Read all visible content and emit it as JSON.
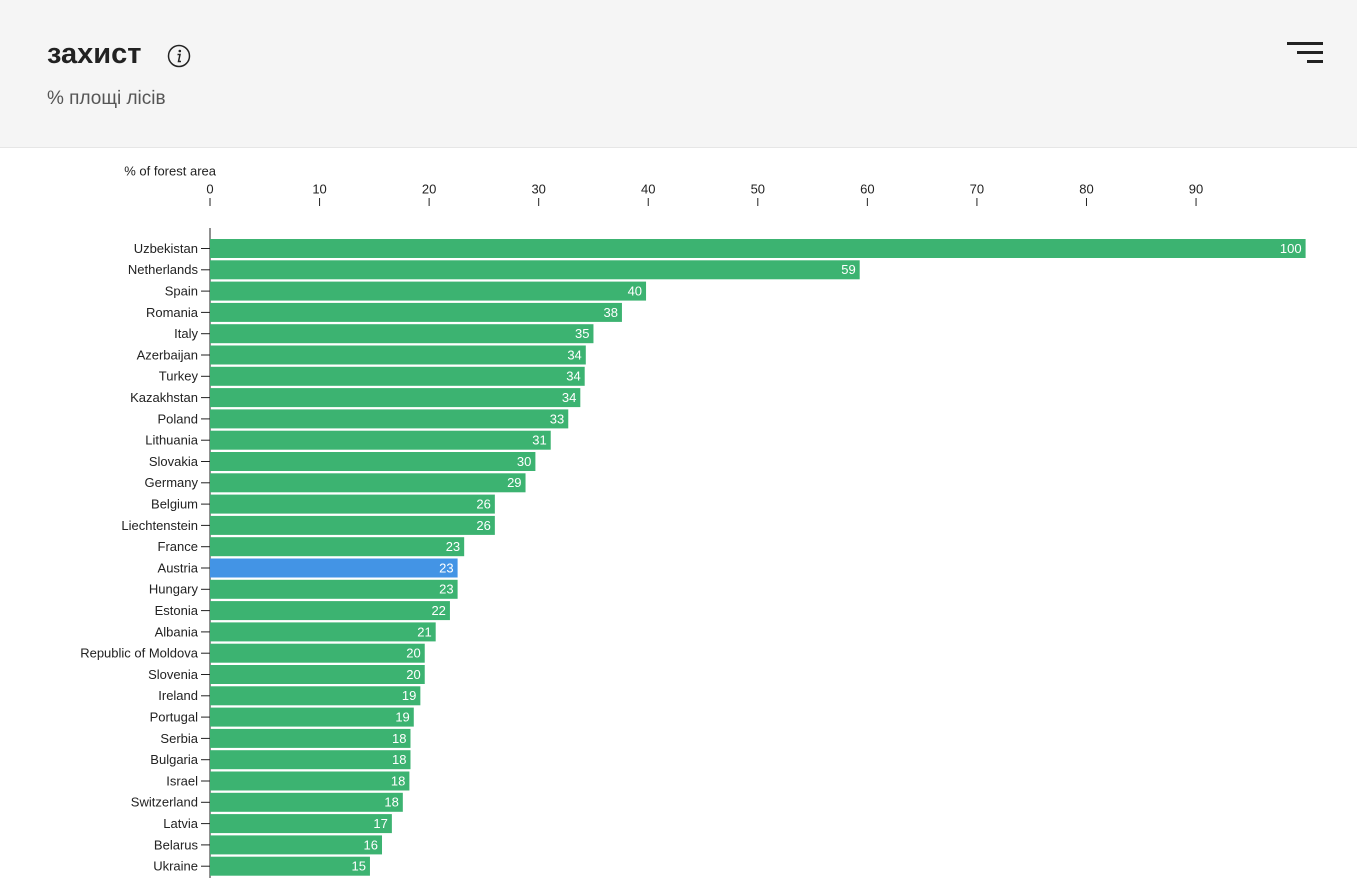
{
  "header": {
    "title": "захист",
    "subtitle": "% площі лісів"
  },
  "chart_data": {
    "type": "hbar",
    "x_label": "% of forest area",
    "categories": [
      "Uzbekistan",
      "Netherlands",
      "Spain",
      "Romania",
      "Italy",
      "Azerbaijan",
      "Turkey",
      "Kazakhstan",
      "Poland",
      "Lithuania",
      "Slovakia",
      "Germany",
      "Belgium",
      "Liechtenstein",
      "France",
      "Austria",
      "Hungary",
      "Estonia",
      "Albania",
      "Republic of Moldova",
      "Slovenia",
      "Ireland",
      "Portugal",
      "Serbia",
      "Bulgaria",
      "Israel",
      "Switzerland",
      "Latvia",
      "Belarus",
      "Ukraine"
    ],
    "values": [
      100,
      59.3,
      39.8,
      37.6,
      35.0,
      34.3,
      34.2,
      33.8,
      32.7,
      31.1,
      29.7,
      28.8,
      26.0,
      26.0,
      23.2,
      22.6,
      22.6,
      21.9,
      20.6,
      19.6,
      19.6,
      19.2,
      18.6,
      18.3,
      18.3,
      18.2,
      17.6,
      16.6,
      15.7,
      14.6
    ],
    "value_labels": [
      "100",
      "59",
      "40",
      "38",
      "35",
      "34",
      "34",
      "34",
      "33",
      "31",
      "30",
      "29",
      "26",
      "26",
      "23",
      "23",
      "23",
      "22",
      "21",
      "20",
      "20",
      "19",
      "19",
      "18",
      "18",
      "18",
      "18",
      "17",
      "16",
      "15"
    ],
    "colors": [
      "#3cb371",
      "#3cb371",
      "#3cb371",
      "#3cb371",
      "#3cb371",
      "#3cb371",
      "#3cb371",
      "#3cb371",
      "#3cb371",
      "#3cb371",
      "#3cb371",
      "#3cb371",
      "#3cb371",
      "#3cb371",
      "#3cb371",
      "#4394e5",
      "#3cb371",
      "#3cb371",
      "#3cb371",
      "#3cb371",
      "#3cb371",
      "#3cb371",
      "#3cb371",
      "#3cb371",
      "#3cb371",
      "#3cb371",
      "#3cb371",
      "#3cb371",
      "#3cb371",
      "#3cb371"
    ],
    "xlim": [
      0,
      100
    ],
    "xticks": [
      0,
      10,
      20,
      30,
      40,
      50,
      60,
      70,
      80,
      90
    ]
  }
}
